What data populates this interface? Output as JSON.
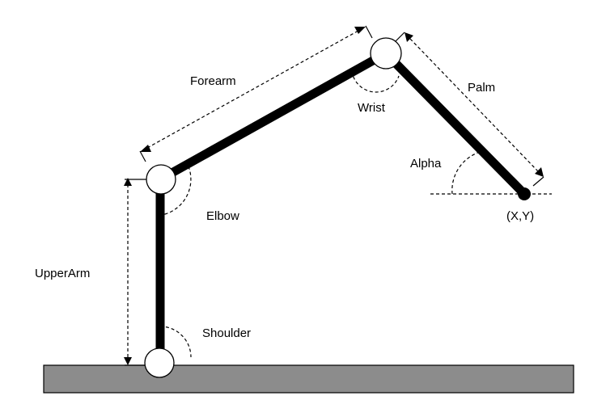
{
  "labels": {
    "forearm": "Forearm",
    "wrist": "Wrist",
    "palm": "Palm",
    "alpha": "Alpha",
    "endpoint": "(X,Y)",
    "elbow": "Elbow",
    "upper_arm": "UpperArm",
    "shoulder": "Shoulder"
  },
  "colors": {
    "ground": "#8c8c8c",
    "link": "#000000",
    "joint_fill": "#ffffff"
  }
}
